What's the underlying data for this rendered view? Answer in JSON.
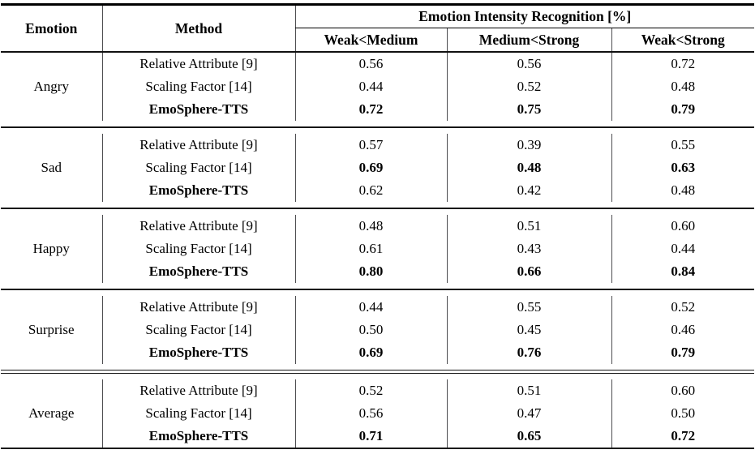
{
  "table": {
    "headers": {
      "emotion": "Emotion",
      "method": "Method",
      "group_header": "Emotion Intensity Recognition [%]",
      "sub_headers": [
        "Weak<Medium",
        "Medium<Strong",
        "Weak<Strong"
      ]
    },
    "groups": [
      {
        "emotion": "Angry",
        "rows": [
          {
            "method": "Relative Attribute [9]",
            "method_bold": false,
            "values": [
              "0.56",
              "0.56",
              "0.72"
            ],
            "bold": [
              false,
              false,
              false
            ]
          },
          {
            "method": "Scaling Factor [14]",
            "method_bold": false,
            "values": [
              "0.44",
              "0.52",
              "0.48"
            ],
            "bold": [
              false,
              false,
              false
            ]
          },
          {
            "method": "EmoSphere-TTS",
            "method_bold": true,
            "values": [
              "0.72",
              "0.75",
              "0.79"
            ],
            "bold": [
              true,
              true,
              true
            ]
          }
        ]
      },
      {
        "emotion": "Sad",
        "rows": [
          {
            "method": "Relative Attribute [9]",
            "method_bold": false,
            "values": [
              "0.57",
              "0.39",
              "0.55"
            ],
            "bold": [
              false,
              false,
              false
            ]
          },
          {
            "method": "Scaling Factor [14]",
            "method_bold": false,
            "values": [
              "0.69",
              "0.48",
              "0.63"
            ],
            "bold": [
              true,
              true,
              true
            ]
          },
          {
            "method": "EmoSphere-TTS",
            "method_bold": true,
            "values": [
              "0.62",
              "0.42",
              "0.48"
            ],
            "bold": [
              false,
              false,
              false
            ]
          }
        ]
      },
      {
        "emotion": "Happy",
        "rows": [
          {
            "method": "Relative Attribute [9]",
            "method_bold": false,
            "values": [
              "0.48",
              "0.51",
              "0.60"
            ],
            "bold": [
              false,
              false,
              false
            ]
          },
          {
            "method": "Scaling Factor [14]",
            "method_bold": false,
            "values": [
              "0.61",
              "0.43",
              "0.44"
            ],
            "bold": [
              false,
              false,
              false
            ]
          },
          {
            "method": "EmoSphere-TTS",
            "method_bold": true,
            "values": [
              "0.80",
              "0.66",
              "0.84"
            ],
            "bold": [
              true,
              true,
              true
            ]
          }
        ]
      },
      {
        "emotion": "Surprise",
        "rows": [
          {
            "method": "Relative Attribute [9]",
            "method_bold": false,
            "values": [
              "0.44",
              "0.55",
              "0.52"
            ],
            "bold": [
              false,
              false,
              false
            ]
          },
          {
            "method": "Scaling Factor [14]",
            "method_bold": false,
            "values": [
              "0.50",
              "0.45",
              "0.46"
            ],
            "bold": [
              false,
              false,
              false
            ]
          },
          {
            "method": "EmoSphere-TTS",
            "method_bold": true,
            "values": [
              "0.69",
              "0.76",
              "0.79"
            ],
            "bold": [
              true,
              true,
              true
            ]
          }
        ]
      },
      {
        "emotion": "Average",
        "rows": [
          {
            "method": "Relative Attribute [9]",
            "method_bold": false,
            "values": [
              "0.52",
              "0.51",
              "0.60"
            ],
            "bold": [
              false,
              false,
              false
            ]
          },
          {
            "method": "Scaling Factor [14]",
            "method_bold": false,
            "values": [
              "0.56",
              "0.47",
              "0.50"
            ],
            "bold": [
              false,
              false,
              false
            ]
          },
          {
            "method": "EmoSphere-TTS",
            "method_bold": true,
            "values": [
              "0.71",
              "0.65",
              "0.72"
            ],
            "bold": [
              true,
              true,
              true
            ]
          }
        ]
      }
    ],
    "separators": [
      "single",
      "single",
      "single",
      "double"
    ]
  },
  "colors": {
    "background": "#ffffff",
    "text": "#000000",
    "rule": "#161616",
    "divider": "#4d4d50"
  }
}
